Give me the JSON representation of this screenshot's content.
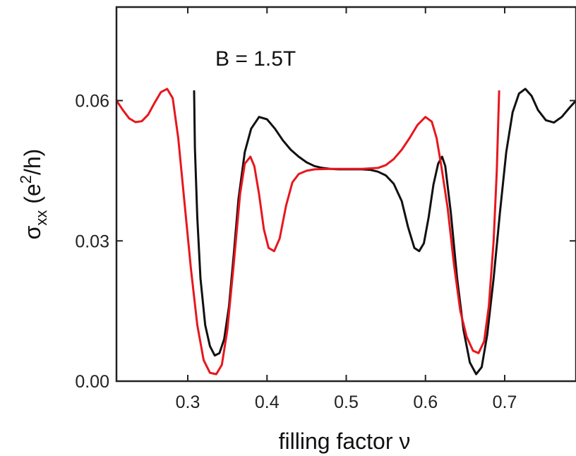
{
  "chart_data": {
    "type": "line",
    "annotation": "B = 1.5T",
    "xlabel": "filling factor ν",
    "ylabel": {
      "main": "σ",
      "sub": "xx",
      "unit_prefix": " (e",
      "sup": "2",
      "unit_suffix": "/h)"
    },
    "xlim": [
      0.21,
      0.79
    ],
    "ylim": [
      0.0,
      0.08
    ],
    "x_ticks": [
      0.3,
      0.4,
      0.5,
      0.6,
      0.7
    ],
    "x_tick_labels": [
      "0.3",
      "0.4",
      "0.5",
      "0.6",
      "0.7"
    ],
    "y_ticks": [
      0.0,
      0.03,
      0.06
    ],
    "y_tick_labels": [
      "0.00",
      "0.03",
      "0.06"
    ],
    "grid": false,
    "series": [
      {
        "color": "#111111",
        "points": [
          [
            0.308,
            0.062
          ],
          [
            0.309,
            0.05
          ],
          [
            0.312,
            0.035
          ],
          [
            0.316,
            0.022
          ],
          [
            0.322,
            0.012
          ],
          [
            0.328,
            0.0075
          ],
          [
            0.334,
            0.0055
          ],
          [
            0.34,
            0.006
          ],
          [
            0.346,
            0.009
          ],
          [
            0.352,
            0.016
          ],
          [
            0.358,
            0.027
          ],
          [
            0.364,
            0.039
          ],
          [
            0.372,
            0.049
          ],
          [
            0.38,
            0.054
          ],
          [
            0.39,
            0.0565
          ],
          [
            0.4,
            0.056
          ],
          [
            0.41,
            0.054
          ],
          [
            0.42,
            0.0515
          ],
          [
            0.43,
            0.0495
          ],
          [
            0.44,
            0.048
          ],
          [
            0.45,
            0.0468
          ],
          [
            0.46,
            0.046
          ],
          [
            0.47,
            0.0456
          ],
          [
            0.48,
            0.0454
          ],
          [
            0.49,
            0.0453
          ],
          [
            0.5,
            0.0453
          ],
          [
            0.51,
            0.0453
          ],
          [
            0.52,
            0.0453
          ],
          [
            0.53,
            0.0452
          ],
          [
            0.54,
            0.0448
          ],
          [
            0.55,
            0.044
          ],
          [
            0.56,
            0.0422
          ],
          [
            0.57,
            0.0385
          ],
          [
            0.578,
            0.033
          ],
          [
            0.586,
            0.0285
          ],
          [
            0.592,
            0.0278
          ],
          [
            0.598,
            0.0295
          ],
          [
            0.604,
            0.035
          ],
          [
            0.61,
            0.042
          ],
          [
            0.616,
            0.0465
          ],
          [
            0.621,
            0.048
          ],
          [
            0.625,
            0.046
          ],
          [
            0.632,
            0.036
          ],
          [
            0.64,
            0.022
          ],
          [
            0.648,
            0.011
          ],
          [
            0.656,
            0.004
          ],
          [
            0.664,
            0.0015
          ],
          [
            0.671,
            0.003
          ],
          [
            0.678,
            0.01
          ],
          [
            0.686,
            0.022
          ],
          [
            0.694,
            0.036
          ],
          [
            0.702,
            0.049
          ],
          [
            0.71,
            0.0575
          ],
          [
            0.718,
            0.0615
          ],
          [
            0.726,
            0.0625
          ],
          [
            0.734,
            0.061
          ],
          [
            0.742,
            0.058
          ],
          [
            0.752,
            0.0558
          ],
          [
            0.762,
            0.0553
          ],
          [
            0.772,
            0.0565
          ],
          [
            0.782,
            0.0585
          ],
          [
            0.79,
            0.06
          ]
        ]
      },
      {
        "color": "#e8161d",
        "points": [
          [
            0.21,
            0.06
          ],
          [
            0.218,
            0.058
          ],
          [
            0.226,
            0.0562
          ],
          [
            0.234,
            0.0554
          ],
          [
            0.242,
            0.0556
          ],
          [
            0.25,
            0.057
          ],
          [
            0.258,
            0.0595
          ],
          [
            0.266,
            0.0618
          ],
          [
            0.274,
            0.0625
          ],
          [
            0.281,
            0.0605
          ],
          [
            0.288,
            0.052
          ],
          [
            0.296,
            0.038
          ],
          [
            0.304,
            0.024
          ],
          [
            0.312,
            0.012
          ],
          [
            0.32,
            0.0045
          ],
          [
            0.328,
            0.0018
          ],
          [
            0.336,
            0.0015
          ],
          [
            0.343,
            0.0035
          ],
          [
            0.35,
            0.011
          ],
          [
            0.358,
            0.025
          ],
          [
            0.366,
            0.04
          ],
          [
            0.372,
            0.0465
          ],
          [
            0.379,
            0.048
          ],
          [
            0.384,
            0.046
          ],
          [
            0.39,
            0.04
          ],
          [
            0.396,
            0.0325
          ],
          [
            0.402,
            0.0285
          ],
          [
            0.409,
            0.0278
          ],
          [
            0.416,
            0.0305
          ],
          [
            0.424,
            0.0375
          ],
          [
            0.432,
            0.0425
          ],
          [
            0.44,
            0.0443
          ],
          [
            0.45,
            0.045
          ],
          [
            0.46,
            0.0453
          ],
          [
            0.48,
            0.0454
          ],
          [
            0.5,
            0.0454
          ],
          [
            0.52,
            0.0454
          ],
          [
            0.54,
            0.0456
          ],
          [
            0.55,
            0.0462
          ],
          [
            0.56,
            0.0475
          ],
          [
            0.57,
            0.0495
          ],
          [
            0.58,
            0.052
          ],
          [
            0.59,
            0.0548
          ],
          [
            0.6,
            0.0565
          ],
          [
            0.608,
            0.0555
          ],
          [
            0.614,
            0.052
          ],
          [
            0.62,
            0.046
          ],
          [
            0.628,
            0.037
          ],
          [
            0.636,
            0.025
          ],
          [
            0.644,
            0.015
          ],
          [
            0.652,
            0.0095
          ],
          [
            0.66,
            0.0065
          ],
          [
            0.667,
            0.006
          ],
          [
            0.674,
            0.0085
          ],
          [
            0.68,
            0.016
          ],
          [
            0.686,
            0.03
          ],
          [
            0.69,
            0.045
          ],
          [
            0.693,
            0.062
          ]
        ]
      }
    ]
  }
}
